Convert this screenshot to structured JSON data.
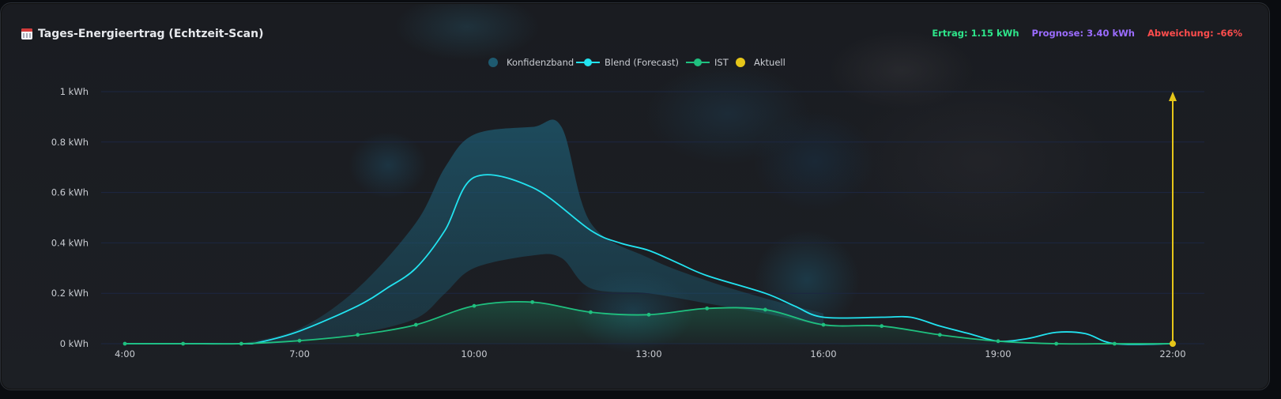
{
  "title": "Tages-Energieertrag (Echtzeit-Scan)",
  "stats": {
    "ertrag": "Ertrag: 1.15 kWh",
    "prognose": "Prognose: 3.40 kWh",
    "abweichung": "Abweichung: -66%"
  },
  "colors": {
    "ist": "#1fc07f",
    "blend": "#22e3f0",
    "band": "#1e5a70",
    "aktuell": "#e6c619",
    "ertrag": "#2ee58a",
    "prognose": "#9b6cff",
    "abweichung": "#ff4d4d"
  },
  "chart_data": {
    "type": "line",
    "x_labels": [
      "4:00",
      "7:00",
      "10:00",
      "13:00",
      "16:00",
      "19:00",
      "22:00"
    ],
    "y_labels": [
      "0 kWh",
      "0.2 kWh",
      "0.4 kWh",
      "0.6 kWh",
      "0.8 kWh",
      "1 kWh"
    ],
    "xlim": [
      4,
      22
    ],
    "ylim": [
      0,
      1
    ],
    "legend": [
      "Konfidenzband",
      "Blend (Forecast)",
      "IST",
      "Aktuell"
    ],
    "legend_position": "top-center",
    "grid": true,
    "series": [
      {
        "name": "Blend (Forecast)",
        "x": [
          4,
          5,
          6,
          6.3,
          7,
          8,
          8.5,
          9,
          9.5,
          10,
          11,
          12,
          12.5,
          13,
          13.5,
          14,
          15,
          15.5,
          16,
          17,
          17.5,
          18,
          18.5,
          19,
          19.5,
          20,
          20.5,
          21,
          22
        ],
        "values": [
          0,
          0,
          0,
          0.005,
          0.05,
          0.15,
          0.22,
          0.3,
          0.45,
          0.66,
          0.62,
          0.45,
          0.4,
          0.37,
          0.32,
          0.27,
          0.2,
          0.15,
          0.105,
          0.105,
          0.105,
          0.07,
          0.04,
          0.01,
          0.02,
          0.045,
          0.04,
          0,
          0
        ]
      },
      {
        "name": "IST",
        "x": [
          4,
          5,
          6,
          7,
          8,
          9,
          10,
          11,
          12,
          13,
          14,
          15,
          16,
          17,
          18,
          19,
          20,
          21,
          22
        ],
        "values": [
          0,
          0,
          0,
          0.012,
          0.035,
          0.075,
          0.15,
          0.165,
          0.125,
          0.115,
          0.14,
          0.135,
          0.075,
          0.07,
          0.035,
          0.01,
          0,
          0,
          0
        ]
      },
      {
        "name": "Konfidenzband",
        "x": [
          6,
          7,
          8,
          9,
          9.5,
          10,
          11,
          11.5,
          12,
          13,
          14,
          15,
          16
        ],
        "upper": [
          0,
          0.06,
          0.22,
          0.48,
          0.7,
          0.83,
          0.86,
          0.86,
          0.48,
          0.34,
          0.25,
          0.18,
          0.12
        ],
        "lower": [
          0,
          0.01,
          0.04,
          0.1,
          0.2,
          0.3,
          0.35,
          0.34,
          0.22,
          0.2,
          0.16,
          0.12,
          0.07
        ]
      }
    ],
    "aktuell": {
      "x": 22,
      "y": 0
    }
  }
}
